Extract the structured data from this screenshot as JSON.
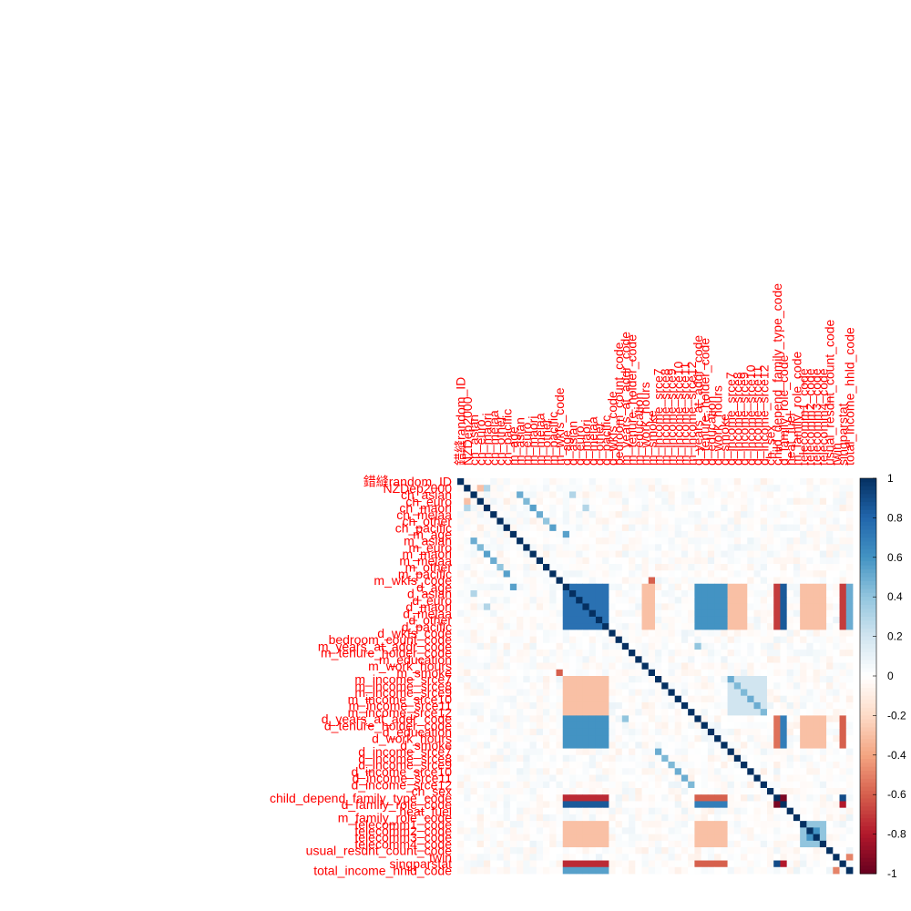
{
  "chart_data": {
    "type": "heatmap",
    "title": "",
    "variables": [
      "錯縫random_ID",
      "NZDep2000",
      "ch_asian",
      "ch_euro",
      "ch_maori",
      "ch_melaa",
      "ch_other",
      "ch_pacific",
      "m_age",
      "m_asian",
      "m_euro",
      "m_maori",
      "m_melaa",
      "m_other",
      "m_pacific",
      "m_wkfs_code",
      "d_age",
      "d_asian",
      "d_euro",
      "d_maori",
      "d_melaa",
      "d_other",
      "d_pacific",
      "d_wkfs_code",
      "bedroom_count_code",
      "m_years_at_addr_code",
      "m_tenure_holder_code",
      "m_education",
      "m_work_hours",
      "m_smoke",
      "m_income_srce7",
      "m_income_srce8",
      "m_income_srce9",
      "m_income_srce10",
      "m_income_srce11",
      "m_income_srce12",
      "d_years_at_addr_code",
      "d_tenure_holder_code",
      "d_education",
      "d_work_hours",
      "d_smoke",
      "d_income_srce7",
      "d_income_srce8",
      "d_income_srce9",
      "d_income_srce10",
      "d_income_srce11",
      "d_income_srce12",
      "ch_sex",
      "child_depend_family_type_code",
      "d_family_role_code",
      "heat_fuel",
      "m_family_role_code",
      "telecomm1_code",
      "telecomm2_code",
      "telecomm3_code",
      "telecomm4_code",
      "usual_resdnt_count_code",
      "twin",
      "singparstat",
      "total_income_hhld_code"
    ],
    "blocks": [
      {
        "rows": [
          16,
          22
        ],
        "cols": [
          16,
          22
        ],
        "value": 0.75
      },
      {
        "rows": [
          16,
          22
        ],
        "cols": [
          36,
          40
        ],
        "value": 0.6
      },
      {
        "rows": [
          36,
          40
        ],
        "cols": [
          16,
          22
        ],
        "value": 0.6
      },
      {
        "rows": [
          16,
          22
        ],
        "cols": [
          48,
          48
        ],
        "value": -0.7
      },
      {
        "rows": [
          16,
          22
        ],
        "cols": [
          49,
          49
        ],
        "value": 0.85
      },
      {
        "rows": [
          48,
          48
        ],
        "cols": [
          16,
          22
        ],
        "value": -0.75
      },
      {
        "rows": [
          49,
          49
        ],
        "cols": [
          16,
          22
        ],
        "value": 0.85
      },
      {
        "rows": [
          16,
          22
        ],
        "cols": [
          58,
          58
        ],
        "value": -0.7
      },
      {
        "rows": [
          16,
          22
        ],
        "cols": [
          59,
          59
        ],
        "value": 0.5
      },
      {
        "rows": [
          58,
          58
        ],
        "cols": [
          16,
          22
        ],
        "value": -0.75
      },
      {
        "rows": [
          59,
          59
        ],
        "cols": [
          16,
          22
        ],
        "value": 0.55
      },
      {
        "rows": [
          16,
          22
        ],
        "cols": [
          28,
          29
        ],
        "value": -0.3
      },
      {
        "rows": [
          16,
          22
        ],
        "cols": [
          41,
          43
        ],
        "value": -0.3
      },
      {
        "rows": [
          16,
          22
        ],
        "cols": [
          52,
          55
        ],
        "value": -0.3
      },
      {
        "rows": [
          30,
          35
        ],
        "cols": [
          16,
          22
        ],
        "value": -0.3
      },
      {
        "rows": [
          52,
          55
        ],
        "cols": [
          16,
          22
        ],
        "value": -0.3
      },
      {
        "rows": [
          36,
          40
        ],
        "cols": [
          48,
          48
        ],
        "value": -0.55
      },
      {
        "rows": [
          36,
          40
        ],
        "cols": [
          49,
          49
        ],
        "value": 0.7
      },
      {
        "rows": [
          48,
          48
        ],
        "cols": [
          36,
          40
        ],
        "value": -0.6
      },
      {
        "rows": [
          49,
          49
        ],
        "cols": [
          36,
          40
        ],
        "value": 0.7
      },
      {
        "rows": [
          36,
          40
        ],
        "cols": [
          58,
          58
        ],
        "value": -0.6
      },
      {
        "rows": [
          58,
          58
        ],
        "cols": [
          36,
          40
        ],
        "value": -0.6
      },
      {
        "rows": [
          36,
          40
        ],
        "cols": [
          52,
          55
        ],
        "value": -0.3
      },
      {
        "rows": [
          52,
          55
        ],
        "cols": [
          36,
          40
        ],
        "value": -0.3
      },
      {
        "rows": [
          48,
          48
        ],
        "cols": [
          49,
          49
        ],
        "value": -0.95
      },
      {
        "rows": [
          49,
          49
        ],
        "cols": [
          48,
          48
        ],
        "value": -0.95
      },
      {
        "rows": [
          48,
          48
        ],
        "cols": [
          58,
          58
        ],
        "value": 0.9
      },
      {
        "rows": [
          58,
          58
        ],
        "cols": [
          48,
          48
        ],
        "value": 0.9
      },
      {
        "rows": [
          49,
          49
        ],
        "cols": [
          58,
          58
        ],
        "value": -0.8
      },
      {
        "rows": [
          58,
          58
        ],
        "cols": [
          49,
          49
        ],
        "value": -0.8
      },
      {
        "rows": [
          52,
          55
        ],
        "cols": [
          52,
          55
        ],
        "value": 0.4
      },
      {
        "rows": [
          30,
          35
        ],
        "cols": [
          41,
          46
        ],
        "value": 0.2
      }
    ],
    "pairs": [
      {
        "row": 8,
        "col": 16,
        "value": 0.55
      },
      {
        "row": 16,
        "col": 8,
        "value": 0.55
      },
      {
        "row": 9,
        "col": 2,
        "value": 0.5
      },
      {
        "row": 2,
        "col": 9,
        "value": 0.5
      },
      {
        "row": 10,
        "col": 3,
        "value": 0.45
      },
      {
        "row": 3,
        "col": 10,
        "value": 0.45
      },
      {
        "row": 11,
        "col": 4,
        "value": 0.55
      },
      {
        "row": 4,
        "col": 11,
        "value": 0.55
      },
      {
        "row": 12,
        "col": 5,
        "value": 0.5
      },
      {
        "row": 5,
        "col": 12,
        "value": 0.5
      },
      {
        "row": 13,
        "col": 6,
        "value": 0.4
      },
      {
        "row": 6,
        "col": 13,
        "value": 0.4
      },
      {
        "row": 14,
        "col": 7,
        "value": 0.55
      },
      {
        "row": 7,
        "col": 14,
        "value": 0.55
      },
      {
        "row": 15,
        "col": 29,
        "value": -0.6
      },
      {
        "row": 29,
        "col": 15,
        "value": -0.6
      },
      {
        "row": 30,
        "col": 41,
        "value": 0.5
      },
      {
        "row": 41,
        "col": 30,
        "value": 0.5
      },
      {
        "row": 31,
        "col": 42,
        "value": 0.45
      },
      {
        "row": 42,
        "col": 31,
        "value": 0.45
      },
      {
        "row": 32,
        "col": 43,
        "value": 0.45
      },
      {
        "row": 43,
        "col": 32,
        "value": 0.45
      },
      {
        "row": 33,
        "col": 44,
        "value": 0.5
      },
      {
        "row": 44,
        "col": 33,
        "value": 0.5
      },
      {
        "row": 34,
        "col": 45,
        "value": 0.5
      },
      {
        "row": 45,
        "col": 34,
        "value": 0.5
      },
      {
        "row": 35,
        "col": 46,
        "value": 0.45
      },
      {
        "row": 46,
        "col": 35,
        "value": 0.45
      },
      {
        "row": 25,
        "col": 36,
        "value": 0.4
      },
      {
        "row": 36,
        "col": 25,
        "value": 0.4
      },
      {
        "row": 2,
        "col": 17,
        "value": 0.3
      },
      {
        "row": 17,
        "col": 2,
        "value": 0.3
      },
      {
        "row": 4,
        "col": 19,
        "value": 0.3
      },
      {
        "row": 19,
        "col": 4,
        "value": 0.3
      },
      {
        "row": 53,
        "col": 54,
        "value": 0.6
      },
      {
        "row": 54,
        "col": 53,
        "value": 0.6
      },
      {
        "row": 1,
        "col": 3,
        "value": -0.3
      },
      {
        "row": 3,
        "col": 1,
        "value": -0.3
      },
      {
        "row": 1,
        "col": 4,
        "value": 0.3
      },
      {
        "row": 4,
        "col": 1,
        "value": 0.3
      },
      {
        "row": 57,
        "col": 59,
        "value": -0.5
      },
      {
        "row": 59,
        "col": 57,
        "value": -0.5
      }
    ],
    "colorbar": {
      "range": [
        -1,
        1
      ],
      "ticks": [
        "1",
        "0.8",
        "0.6",
        "0.4",
        "0.2",
        "0",
        "-0.2",
        "-0.4",
        "-0.6",
        "-0.8",
        "-1"
      ],
      "palette": [
        "#67001f",
        "#b2182b",
        "#d6604d",
        "#f4a582",
        "#fddbc7",
        "#ffffff",
        "#d1e5f0",
        "#92c5de",
        "#4393c3",
        "#2166ac",
        "#053061"
      ]
    },
    "label_color": "#ff0000"
  }
}
